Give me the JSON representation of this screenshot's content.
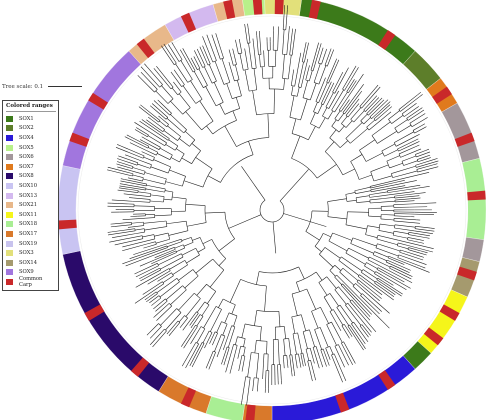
{
  "tree_scale": {
    "label": "Tree scale: 0.1"
  },
  "legend": {
    "title": "Colored ranges",
    "items": [
      {
        "label": "SOX1",
        "color": "#3c7a1a"
      },
      {
        "label": "SOX2",
        "color": "#5d7e2a"
      },
      {
        "label": "SOX4",
        "color": "#2a1ad8"
      },
      {
        "label": "SOX5",
        "color": "#b8f08a"
      },
      {
        "label": "SOX6",
        "color": "#a3979b"
      },
      {
        "label": "SOX7",
        "color": "#e07a1d"
      },
      {
        "label": "SOX8",
        "color": "#2a0a6a"
      },
      {
        "label": "SOX10",
        "color": "#c9c4f2"
      },
      {
        "label": "SOX13",
        "color": "#d3b9ef"
      },
      {
        "label": "SOX21",
        "color": "#e8b88a"
      },
      {
        "label": "SOX11",
        "color": "#f5f51a"
      },
      {
        "label": "SOX18",
        "color": "#a9ee94"
      },
      {
        "label": "SOX17",
        "color": "#d9792b"
      },
      {
        "label": "SOX19",
        "color": "#c8c3ee"
      },
      {
        "label": "SOX3",
        "color": "#e2e07a"
      },
      {
        "label": "SOX14",
        "color": "#a59a6e"
      },
      {
        "label": "SOX9",
        "color": "#a176de"
      },
      {
        "label": "Common Carp",
        "color": "#c9282a"
      }
    ]
  },
  "ring_sectors": [
    {
      "clade": "SOX1",
      "start": -82,
      "end": -48,
      "color": "#3c7a1a"
    },
    {
      "clade": "SOX2",
      "start": -48,
      "end": -38,
      "color": "#5d7e2a"
    },
    {
      "clade": "SOX7",
      "start": -38,
      "end": -30,
      "color": "#e07a1d"
    },
    {
      "clade": "SOX6",
      "start": -30,
      "end": -14,
      "color": "#a3979b"
    },
    {
      "clade": "SOX18",
      "start": -14,
      "end": 8,
      "color": "#a9ee94"
    },
    {
      "clade": "SOX6",
      "start": 8,
      "end": 14,
      "color": "#a3979b"
    },
    {
      "clade": "SOX14",
      "start": 14,
      "end": 24,
      "color": "#a59a6e"
    },
    {
      "clade": "SOX11",
      "start": 24,
      "end": 42,
      "color": "#f5f51a"
    },
    {
      "clade": "SOX1",
      "start": 42,
      "end": 48,
      "color": "#3c7a1a"
    },
    {
      "clade": "SOX4",
      "start": 48,
      "end": 90,
      "color": "#2a1ad8"
    },
    {
      "clade": "SOX17",
      "start": 90,
      "end": 98,
      "color": "#d9792b"
    },
    {
      "clade": "SOX18",
      "start": 98,
      "end": 108,
      "color": "#a9ee94"
    },
    {
      "clade": "SOX17",
      "start": 108,
      "end": 122,
      "color": "#d9792b"
    },
    {
      "clade": "SOX8",
      "start": 122,
      "end": 168,
      "color": "#2a0a6a"
    },
    {
      "clade": "SOX10",
      "start": 168,
      "end": 192,
      "color": "#c9c4f2"
    },
    {
      "clade": "SOX9",
      "start": 192,
      "end": 228,
      "color": "#a176de"
    },
    {
      "clade": "SOX21",
      "start": 228,
      "end": 240,
      "color": "#e8b88a"
    },
    {
      "clade": "SOX13",
      "start": 240,
      "end": 254,
      "color": "#d3b9ef"
    },
    {
      "clade": "SOX21",
      "start": 254,
      "end": 262,
      "color": "#e8b88a"
    },
    {
      "clade": "SOX5",
      "start": 262,
      "end": 268,
      "color": "#b8f08a"
    },
    {
      "clade": "SOX3",
      "start": 268,
      "end": 278,
      "color": "#e2e07a"
    }
  ],
  "common_carp_marks": [
    -78,
    -56,
    -34,
    -20,
    -4,
    18,
    30,
    38,
    56,
    70,
    96,
    114,
    130,
    150,
    176,
    200,
    212,
    232,
    246,
    258,
    266,
    272
  ]
}
